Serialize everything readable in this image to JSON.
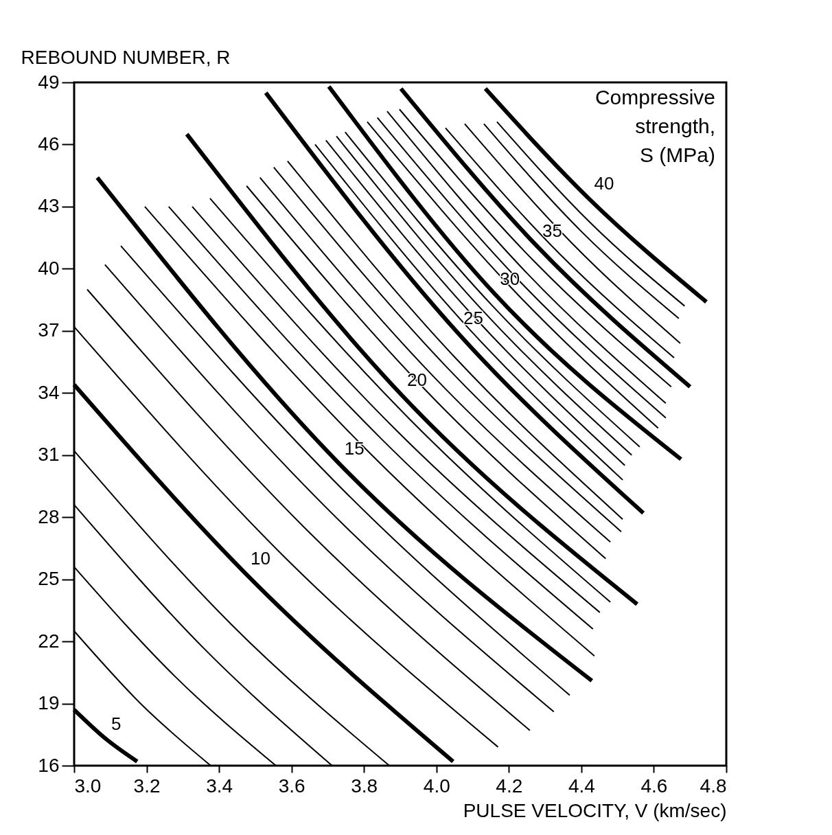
{
  "chart_data": {
    "type": "line",
    "ylabel": "REBOUND NUMBER, R",
    "xlabel": "PULSE VELOCITY, V (km/sec)",
    "legend_title": "Compressive\nstrength,\nS (MPa)",
    "xlim": [
      3.0,
      4.8
    ],
    "xticks": [
      {
        "value": 3.0,
        "label": "3.0"
      },
      {
        "value": 3.2,
        "label": "3.2"
      },
      {
        "value": 3.4,
        "label": "3.4"
      },
      {
        "value": 3.6,
        "label": "3.6"
      },
      {
        "value": 3.8,
        "label": "3.8"
      },
      {
        "value": 4.0,
        "label": "4.0"
      },
      {
        "value": 4.2,
        "label": "4.2"
      },
      {
        "value": 4.4,
        "label": "4.4"
      },
      {
        "value": 4.6,
        "label": "4.6"
      },
      {
        "value": 4.8,
        "label": "4.8"
      }
    ],
    "ylim": [
      16,
      49
    ],
    "yticks": [
      16,
      19,
      22,
      25,
      28,
      31,
      34,
      37,
      40,
      43,
      46,
      49
    ],
    "grid": false,
    "series": [
      {
        "name": "5",
        "color": "#000000",
        "x": [
          3.0,
          3.087,
          3.174
        ],
        "values": [
          18.7,
          17.3,
          16.2
        ]
      },
      {
        "color": "#000000",
        "x": [
          3.0,
          3.189,
          3.377
        ],
        "values": [
          22.5,
          18.9,
          16.0
        ]
      },
      {
        "color": "#000000",
        "x": [
          3.0,
          3.279,
          3.557
        ],
        "values": [
          25.6,
          20.3,
          16.0
        ]
      },
      {
        "color": "#000000",
        "x": [
          3.0,
          3.356,
          3.712
        ],
        "values": [
          28.6,
          21.7,
          16.0
        ]
      },
      {
        "color": "#000000",
        "x": [
          3.0,
          3.435,
          3.87
        ],
        "values": [
          31.2,
          22.8,
          16.0
        ]
      },
      {
        "name": "10",
        "color": "#000000",
        "x": [
          3.0,
          3.472,
          4.046
        ],
        "values": [
          34.4,
          25.3,
          16.2
        ]
      },
      {
        "color": "#000000",
        "x": [
          3.0,
          3.585,
          4.17
        ],
        "values": [
          37.2,
          26.0,
          16.9
        ]
      },
      {
        "color": "#000000",
        "x": [
          3.036,
          3.647,
          4.258
        ],
        "values": [
          39.0,
          27.3,
          17.7
        ]
      },
      {
        "color": "#000000",
        "x": [
          3.085,
          3.705,
          4.324
        ],
        "values": [
          40.2,
          28.3,
          18.6
        ]
      },
      {
        "color": "#000000",
        "x": [
          3.129,
          3.749,
          4.368
        ],
        "values": [
          41.1,
          29.2,
          19.4
        ]
      },
      {
        "name": "15",
        "color": "#000000",
        "x": [
          3.064,
          3.731,
          4.429
        ],
        "values": [
          44.4,
          30.6,
          20.1
        ]
      },
      {
        "color": "#000000",
        "x": [
          3.195,
          3.816,
          4.436
        ],
        "values": [
          43.0,
          31.1,
          21.3
        ]
      },
      {
        "color": "#000000",
        "x": [
          3.261,
          3.847,
          4.432
        ],
        "values": [
          43.0,
          31.8,
          22.6
        ]
      },
      {
        "color": "#000000",
        "x": [
          3.326,
          3.889,
          4.451
        ],
        "values": [
          43.0,
          32.2,
          23.4
        ]
      },
      {
        "color": "#000000",
        "x": [
          3.375,
          3.928,
          4.48
        ],
        "values": [
          43.4,
          32.7,
          23.9
        ]
      },
      {
        "name": "20",
        "color": "#000000",
        "x": [
          3.311,
          3.904,
          4.554
        ],
        "values": [
          46.5,
          33.9,
          23.8
        ]
      },
      {
        "color": "#000000",
        "x": [
          3.476,
          3.972,
          4.467
        ],
        "values": [
          44.0,
          34.1,
          26.0
        ]
      },
      {
        "color": "#000000",
        "x": [
          3.513,
          3.997,
          4.48
        ],
        "values": [
          44.4,
          34.7,
          26.8
        ]
      },
      {
        "color": "#000000",
        "x": [
          3.551,
          4.031,
          4.51
        ],
        "values": [
          44.9,
          35.2,
          27.3
        ]
      },
      {
        "color": "#000000",
        "x": [
          3.589,
          4.052,
          4.514
        ],
        "values": [
          45.2,
          35.7,
          27.9
        ]
      },
      {
        "name": "25",
        "color": "#000000",
        "x": [
          3.529,
          4.059,
          4.571
        ],
        "values": [
          48.5,
          36.9,
          28.2
        ]
      },
      {
        "color": "#000000",
        "x": [
          3.665,
          4.09,
          4.514
        ],
        "values": [
          46.0,
          37.1,
          29.8
        ]
      },
      {
        "color": "#000000",
        "x": [
          3.695,
          4.108,
          4.52
        ],
        "values": [
          46.2,
          37.6,
          30.5
        ]
      },
      {
        "color": "#000000",
        "x": [
          3.724,
          4.132,
          4.539
        ],
        "values": [
          46.4,
          37.9,
          31.0
        ]
      },
      {
        "color": "#000000",
        "x": [
          3.748,
          4.155,
          4.561
        ],
        "values": [
          46.6,
          38.2,
          31.4
        ]
      },
      {
        "name": "30",
        "color": "#000000",
        "x": [
          3.703,
          4.16,
          4.675
        ],
        "values": [
          48.8,
          38.8,
          30.8
        ]
      },
      {
        "color": "#000000",
        "x": [
          3.809,
          4.211,
          4.612
        ],
        "values": [
          47.1,
          39.0,
          32.3
        ]
      },
      {
        "color": "#000000",
        "x": [
          3.837,
          4.235,
          4.633
        ],
        "values": [
          47.3,
          39.3,
          32.8
        ]
      },
      {
        "color": "#000000",
        "x": [
          3.864,
          4.249,
          4.633
        ],
        "values": [
          47.6,
          39.8,
          33.5
        ]
      },
      {
        "color": "#000000",
        "x": [
          3.898,
          4.273,
          4.648
        ],
        "values": [
          47.7,
          40.3,
          34.3
        ]
      },
      {
        "name": "35",
        "color": "#000000",
        "x": [
          3.902,
          4.277,
          4.7
        ],
        "values": [
          48.7,
          41.1,
          34.3
        ]
      },
      {
        "color": "#000000",
        "x": [
          4.025,
          4.341,
          4.656
        ],
        "values": [
          46.8,
          40.7,
          35.7
        ]
      },
      {
        "color": "#000000",
        "x": [
          4.078,
          4.376,
          4.673
        ],
        "values": [
          47.0,
          41.2,
          36.4
        ]
      },
      {
        "color": "#000000",
        "x": [
          4.131,
          4.4,
          4.669
        ],
        "values": [
          47.0,
          41.8,
          37.6
        ]
      },
      {
        "color": "#000000",
        "x": [
          4.167,
          4.426,
          4.685
        ],
        "values": [
          47.1,
          42.2,
          38.2
        ]
      },
      {
        "name": "40",
        "color": "#000000",
        "x": [
          4.135,
          4.42,
          4.745
        ],
        "values": [
          48.7,
          43.4,
          38.4
        ]
      }
    ]
  }
}
